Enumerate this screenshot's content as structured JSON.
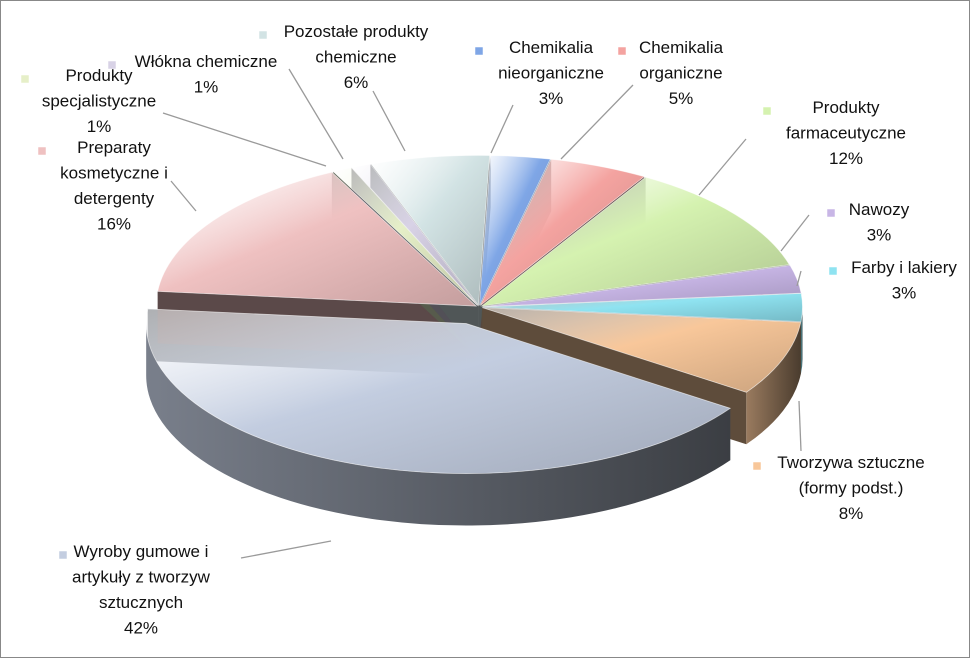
{
  "chart_data": {
    "type": "pie",
    "title": "",
    "slices": [
      {
        "name": "Chemikalia nieorganiczne",
        "label_lines": [
          "Chemikalia",
          "nieorganiczne"
        ],
        "value": 3,
        "value_label": "3%",
        "color": "#7fa6e6"
      },
      {
        "name": "Chemikalia organiczne",
        "label_lines": [
          "Chemikalia",
          "organiczne"
        ],
        "value": 5,
        "value_label": "5%",
        "color": "#f4a3a0"
      },
      {
        "name": "Produkty farmaceutyczne",
        "label_lines": [
          "Produkty",
          "farmaceutyczne"
        ],
        "value": 12,
        "value_label": "12%",
        "color": "#d5f2b0"
      },
      {
        "name": "Nawozy",
        "label_lines": [
          "Nawozy"
        ],
        "value": 3,
        "value_label": "3%",
        "color": "#c8b6e6"
      },
      {
        "name": "Farby i lakiery",
        "label_lines": [
          "Farby i lakiery"
        ],
        "value": 3,
        "value_label": "3%",
        "color": "#8fe3f1"
      },
      {
        "name": "Tworzywa sztuczne (formy podst.)",
        "label_lines": [
          "Tworzywa sztuczne",
          "(formy podst.)"
        ],
        "value": 8,
        "value_label": "8%",
        "color": "#f8c79a"
      },
      {
        "name": "Wyroby gumowe i artykuły z tworzyw sztucznych",
        "label_lines": [
          "Wyroby gumowe i",
          "artykuły z tworzyw",
          "sztucznych"
        ],
        "value": 42,
        "value_label": "42%",
        "color": "#c3cde0"
      },
      {
        "name": "Preparaty kosmetyczne i detergenty",
        "label_lines": [
          "Preparaty",
          "kosmetyczne i",
          "detergenty"
        ],
        "value": 16,
        "value_label": "16%",
        "color": "#efc1c1"
      },
      {
        "name": "Produkty specjalistyczne",
        "label_lines": [
          "Produkty",
          "specjalistyczne"
        ],
        "value": 1,
        "value_label": "1%",
        "color": "#e6efc8"
      },
      {
        "name": "Włókna chemiczne",
        "label_lines": [
          "Włókna chemiczne"
        ],
        "value": 1,
        "value_label": "1%",
        "color": "#d8d2e6"
      },
      {
        "name": "Pozostałe produkty chemiczne",
        "label_lines": [
          "Pozostałe produkty",
          "chemiczne"
        ],
        "value": 6,
        "value_label": "6%",
        "color": "#d2e3e4"
      }
    ]
  }
}
